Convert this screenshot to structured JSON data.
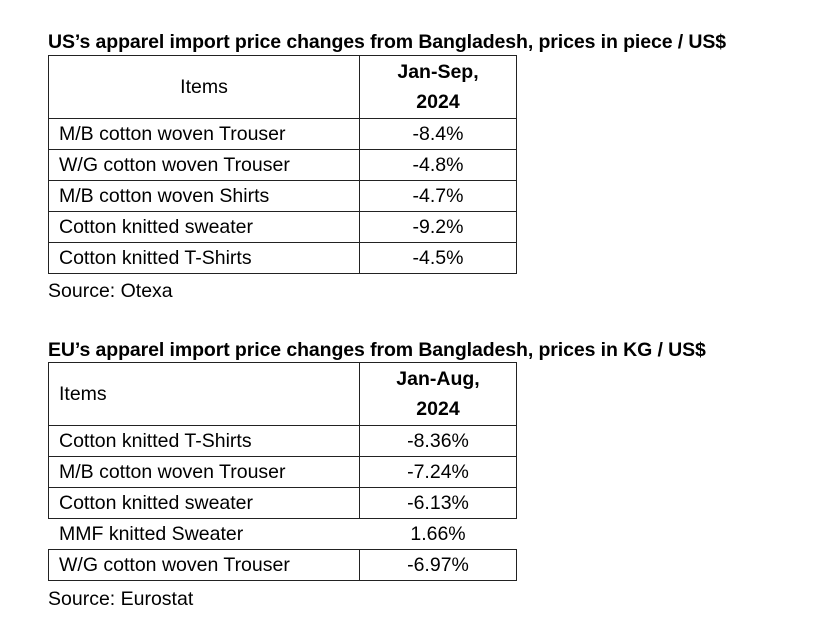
{
  "us_table": {
    "title": "US’s apparel import price changes from Bangladesh, prices in piece / US$",
    "header_items": "Items",
    "header_period_line1": "Jan-Sep,",
    "header_period_line2": "2024",
    "rows": [
      {
        "item": "M/B cotton woven Trouser",
        "change": "-8.4%"
      },
      {
        "item": "W/G cotton woven Trouser",
        "change": "-4.8%"
      },
      {
        "item": "M/B cotton woven Shirts",
        "change": "-4.7%"
      },
      {
        "item": "Cotton knitted sweater",
        "change": "-9.2%"
      },
      {
        "item": "Cotton knitted T-Shirts",
        "change": "-4.5%"
      }
    ],
    "source": "Source: Otexa"
  },
  "eu_table": {
    "title": "EU’s apparel import price changes from Bangladesh, prices in KG / US$",
    "header_items": "Items",
    "header_period_line1": "Jan-Aug,",
    "header_period_line2": "2024",
    "rows": [
      {
        "item": "Cotton knitted T-Shirts",
        "change": "-8.36%"
      },
      {
        "item": "M/B cotton woven Trouser",
        "change": "-7.24%"
      },
      {
        "item": "Cotton knitted sweater",
        "change": "-6.13%"
      },
      {
        "item": "MMF knitted Sweater",
        "change": "1.66%"
      },
      {
        "item": "W/G cotton woven Trouser",
        "change": "-6.97%"
      }
    ],
    "source": "Source: Eurostat"
  }
}
